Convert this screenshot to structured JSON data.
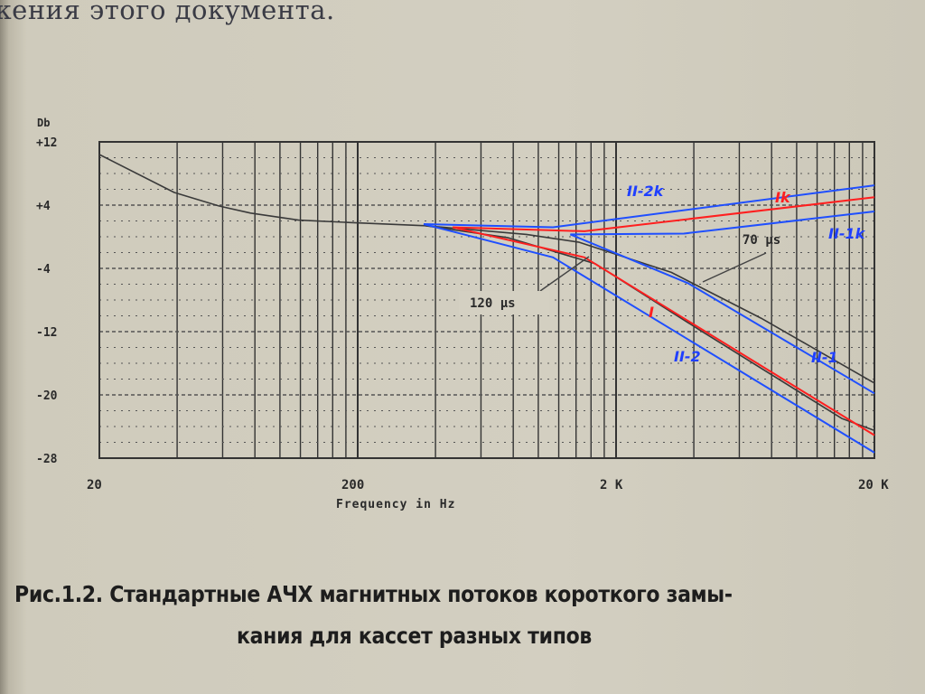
{
  "page": {
    "top_text": "жения этого документа.",
    "caption_line1": "Рис.1.2. Стандартные АЧХ магнитных потоков короткого замы-",
    "caption_line2": "кания для кассет разных типов"
  },
  "chart_data": {
    "type": "line",
    "title": "",
    "xlabel": "Frequency in Hz",
    "ylabel": "Db",
    "x_scale": "log",
    "xlim": [
      20,
      20000
    ],
    "ylim": [
      -28,
      12
    ],
    "x_ticks": [
      {
        "value": 20,
        "label": "20"
      },
      {
        "value": 200,
        "label": "200"
      },
      {
        "value": 2000,
        "label": "2 K"
      },
      {
        "value": 20000,
        "label": "20 K"
      }
    ],
    "y_ticks": [
      {
        "value": 12,
        "label": "+12"
      },
      {
        "value": 4,
        "label": "+4"
      },
      {
        "value": -4,
        "label": "-4"
      },
      {
        "value": -12,
        "label": "-12"
      },
      {
        "value": -20,
        "label": "-20"
      },
      {
        "value": -28,
        "label": "-28"
      }
    ],
    "grid": true,
    "colors": {
      "blue": "#1f4fff",
      "red": "#ff1f1f",
      "black": "#3a3a3a"
    },
    "series": [
      {
        "key": "base",
        "color": "black",
        "points": [
          [
            20,
            10.4
          ],
          [
            39,
            5.6
          ],
          [
            58,
            3.9
          ],
          [
            77,
            3.0
          ],
          [
            118,
            2.1
          ],
          [
            188,
            1.8
          ],
          [
            366,
            1.4
          ]
        ]
      },
      {
        "key": "120us",
        "color": "black",
        "points": [
          [
            366,
            1.4
          ],
          [
            760,
            -0.1
          ],
          [
            1660,
            -3.4
          ],
          [
            4220,
            -11.8
          ],
          [
            15000,
            -23.0
          ],
          [
            20000,
            -24.5
          ]
        ]
      },
      {
        "key": "70us",
        "color": "black",
        "points": [
          [
            366,
            1.4
          ],
          [
            900,
            0.3
          ],
          [
            1440,
            -0.7
          ],
          [
            3270,
            -4.5
          ],
          [
            7280,
            -10.3
          ],
          [
            20000,
            -18.5
          ]
        ]
      },
      {
        "name": "II-2k",
        "color": "blue",
        "points": [
          [
            360,
            1.6
          ],
          [
            1140,
            1.2
          ],
          [
            20000,
            6.5
          ]
        ]
      },
      {
        "name": "Ik",
        "color": "red",
        "points": [
          [
            466,
            1.2
          ],
          [
            1510,
            0.7
          ],
          [
            20000,
            5.0
          ]
        ]
      },
      {
        "name": "II-1k",
        "color": "blue",
        "points": [
          [
            1330,
            0.3
          ],
          [
            3660,
            0.4
          ],
          [
            20000,
            3.2
          ]
        ]
      },
      {
        "name": "I",
        "color": "red",
        "points": [
          [
            466,
            1.2
          ],
          [
            1510,
            -2.6
          ],
          [
            20000,
            -25.1
          ]
        ]
      },
      {
        "name": "II-2",
        "color": "blue",
        "points": [
          [
            360,
            1.6
          ],
          [
            1140,
            -2.6
          ],
          [
            20000,
            -27.3
          ]
        ]
      },
      {
        "name": "II-1",
        "color": "blue",
        "points": [
          [
            1330,
            0.3
          ],
          [
            3810,
            -5.9
          ],
          [
            20000,
            -19.8
          ]
        ]
      }
    ],
    "annotations": [
      {
        "text": "120 µs",
        "series": "120us"
      },
      {
        "text": "70 µs",
        "series": "70us"
      }
    ]
  }
}
